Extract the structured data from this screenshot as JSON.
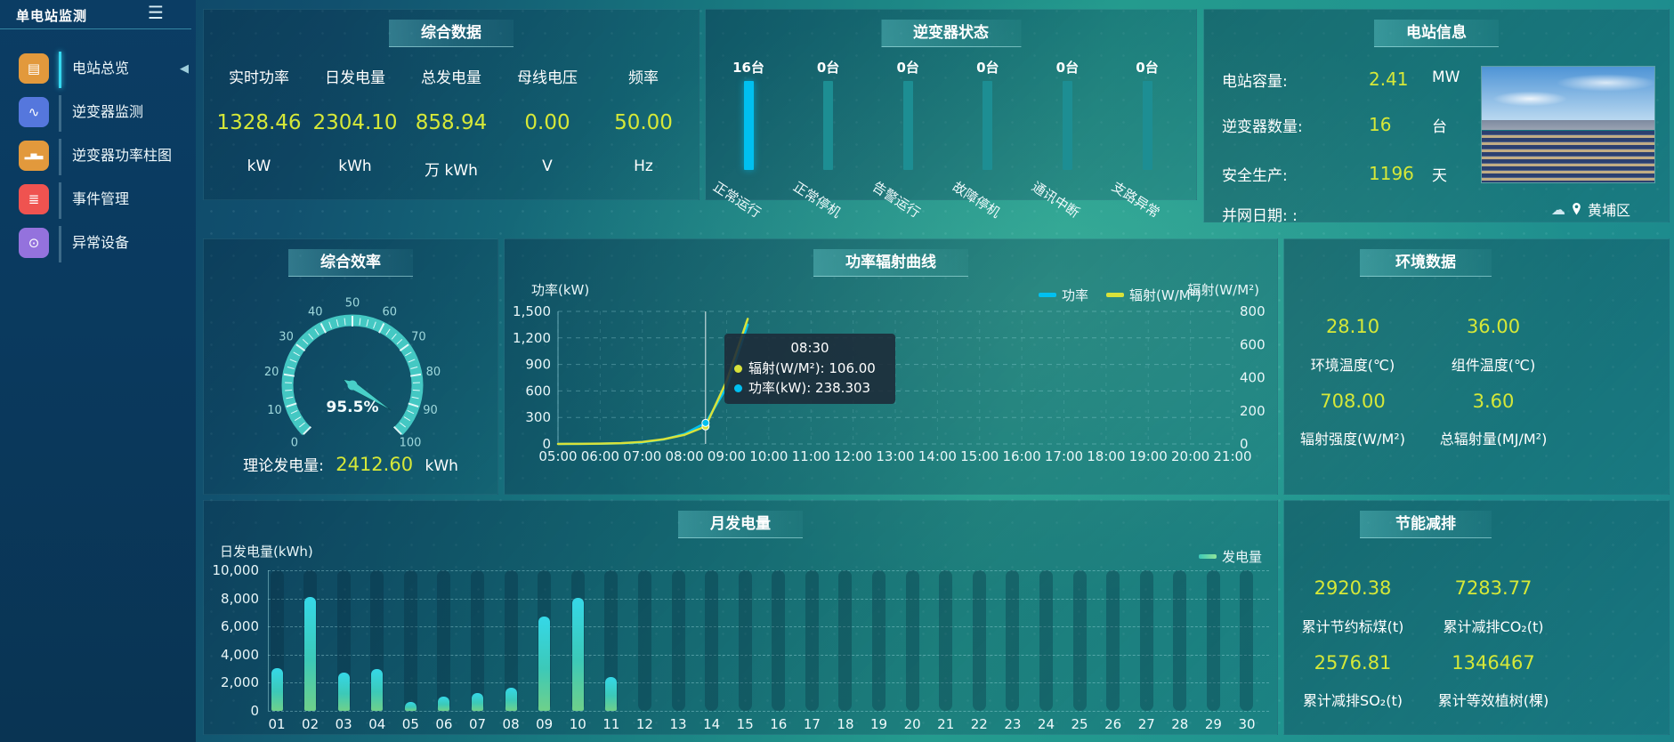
{
  "colors": {
    "accent_yellow": "#d6e838",
    "bright_cyan": "#00c0f0",
    "teal": "#1d8e93",
    "gauge_teal": "#48cfc8",
    "radiation_yellow": "#d8e23a"
  },
  "sidebar": {
    "title": "单电站监测",
    "menu_icon": "☰",
    "collapse_icon": "◀",
    "items": [
      {
        "label": "电站总览",
        "icon": "overview-icon",
        "glyph": "▤",
        "color": "#e2993c",
        "active": true
      },
      {
        "label": "逆变器监测",
        "icon": "inverter-monitor-icon",
        "glyph": "∿",
        "color": "#5577dd",
        "active": false
      },
      {
        "label": "逆变器功率柱图",
        "icon": "power-bars-icon",
        "glyph": "▂▅▃",
        "color": "#e2993c",
        "active": false
      },
      {
        "label": "事件管理",
        "icon": "event-management-icon",
        "glyph": "≣",
        "color": "#ef5350",
        "active": false
      },
      {
        "label": "异常设备",
        "icon": "abnormal-device-icon",
        "glyph": "⊙",
        "color": "#9472dd",
        "active": false
      }
    ]
  },
  "panels": {
    "summary": {
      "title": "综合数据",
      "metrics": [
        {
          "label": "实时功率",
          "value": "1328.46",
          "unit": "kW"
        },
        {
          "label": "日发电量",
          "value": "2304.10",
          "unit": "kWh"
        },
        {
          "label": "总发电量",
          "value": "858.94",
          "unit": "万 kWh"
        },
        {
          "label": "母线电压",
          "value": "0.00",
          "unit": "V"
        },
        {
          "label": "频率",
          "value": "50.00",
          "unit": "Hz"
        }
      ]
    },
    "inverter_status": {
      "title": "逆变器状态",
      "bars": [
        {
          "count": "16台",
          "label": "正常运行",
          "highlight": true
        },
        {
          "count": "0台",
          "label": "正常停机",
          "highlight": false
        },
        {
          "count": "0台",
          "label": "告警运行",
          "highlight": false
        },
        {
          "count": "0台",
          "label": "故障停机",
          "highlight": false
        },
        {
          "count": "0台",
          "label": "通讯中断",
          "highlight": false
        },
        {
          "count": "0台",
          "label": "支路异常",
          "highlight": false
        }
      ]
    },
    "station_info": {
      "title": "电站信息",
      "rows": [
        {
          "label": "电站容量:",
          "value": "2.41",
          "unit": "MW"
        },
        {
          "label": "逆变器数量:",
          "value": "16",
          "unit": "台"
        },
        {
          "label": "安全生产:",
          "value": "1196",
          "unit": "天"
        },
        {
          "label": "并网日期: :",
          "value": "",
          "unit": ""
        }
      ],
      "location": "黄埔区"
    },
    "efficiency": {
      "title": "综合效率",
      "theoretical": {
        "label": "理论发电量:",
        "value": "2412.60",
        "unit": "kWh"
      }
    },
    "power_curve": {
      "title": "功率辐射曲线",
      "tooltip": {
        "time": "08:30",
        "rows": [
          {
            "color": "#d8e23a",
            "text": "辐射(W/M²): 106.00"
          },
          {
            "color": "#00c0f0",
            "text": "功率(kW): 238.303"
          }
        ]
      }
    },
    "environment": {
      "title": "环境数据",
      "metrics": [
        {
          "value": "28.10",
          "label": "环境温度(℃)"
        },
        {
          "value": "36.00",
          "label": "组件温度(℃)"
        },
        {
          "value": "708.00",
          "label": "辐射强度(W/M²)"
        },
        {
          "value": "3.60",
          "label": "总辐射量(MJ/M²)"
        }
      ]
    },
    "monthly": {
      "title": "月发电量"
    },
    "savings": {
      "title": "节能减排",
      "metrics": [
        {
          "value": "2920.38",
          "label": "累计节约标煤(t)"
        },
        {
          "value": "7283.77",
          "label": "累计减排CO₂(t)"
        },
        {
          "value": "2576.81",
          "label": "累计减排SO₂(t)"
        },
        {
          "value": "1346467",
          "label": "累计等效植树(棵)"
        }
      ]
    }
  },
  "chart_data": [
    {
      "id": "efficiency_gauge",
      "type": "gauge",
      "title": "综合效率",
      "min": 0,
      "max": 100,
      "tick_step": 10,
      "value": 95.5,
      "value_label": "95.5%",
      "color": "#48cfc8"
    },
    {
      "id": "power_radiation_curve",
      "type": "line",
      "title": "功率辐射曲线",
      "x_axis_labels": [
        "05:00",
        "06:00",
        "07:00",
        "08:00",
        "09:00",
        "10:00",
        "11:00",
        "12:00",
        "13:00",
        "14:00",
        "15:00",
        "16:00",
        "17:00",
        "18:00",
        "19:00",
        "20:00",
        "21:00"
      ],
      "x_range_hours": [
        5,
        21
      ],
      "x_hours": [
        5,
        5.5,
        6,
        6.5,
        7,
        7.5,
        8,
        8.5,
        9,
        9.5
      ],
      "series": [
        {
          "name": "功率",
          "color": "#00c0f0",
          "axis": "left",
          "unit": "kW",
          "values": [
            0,
            1,
            3,
            8,
            18,
            50,
            115,
            238.303,
            640,
            1350
          ]
        },
        {
          "name": "辐射(W/M²)",
          "color": "#d8e23a",
          "axis": "right",
          "unit": "W/M²",
          "values": [
            0,
            1,
            2,
            5,
            12,
            28,
            55,
            106,
            380,
            755
          ]
        }
      ],
      "y_left": {
        "label": "功率(kW)",
        "ticks": [
          0,
          300,
          600,
          900,
          1200,
          1500
        ]
      },
      "y_right": {
        "label": "辐射(W/M²)",
        "ticks": [
          0,
          200,
          400,
          600,
          800
        ]
      },
      "hover": {
        "x_hour": 8.5,
        "time": "08:30"
      },
      "legend_position": "top-right",
      "grid": true
    },
    {
      "id": "monthly_generation",
      "type": "bar",
      "title": "月发电量",
      "ylabel": "日发电量(kWh)",
      "categories": [
        "01",
        "02",
        "03",
        "04",
        "05",
        "06",
        "07",
        "08",
        "09",
        "10",
        "11",
        "12",
        "13",
        "14",
        "15",
        "16",
        "17",
        "18",
        "19",
        "20",
        "21",
        "22",
        "23",
        "24",
        "25",
        "26",
        "27",
        "28",
        "29",
        "30"
      ],
      "values": [
        3050,
        8100,
        2700,
        2950,
        620,
        1000,
        1250,
        1650,
        6700,
        8050,
        2400,
        0,
        0,
        0,
        0,
        0,
        0,
        0,
        0,
        0,
        0,
        0,
        0,
        0,
        0,
        0,
        0,
        0,
        0,
        0
      ],
      "y_ticks": [
        0,
        2000,
        4000,
        6000,
        8000,
        10000
      ],
      "ylim": [
        0,
        10000
      ],
      "legend": "发电量",
      "legend_position": "top-right",
      "grid": true
    }
  ]
}
